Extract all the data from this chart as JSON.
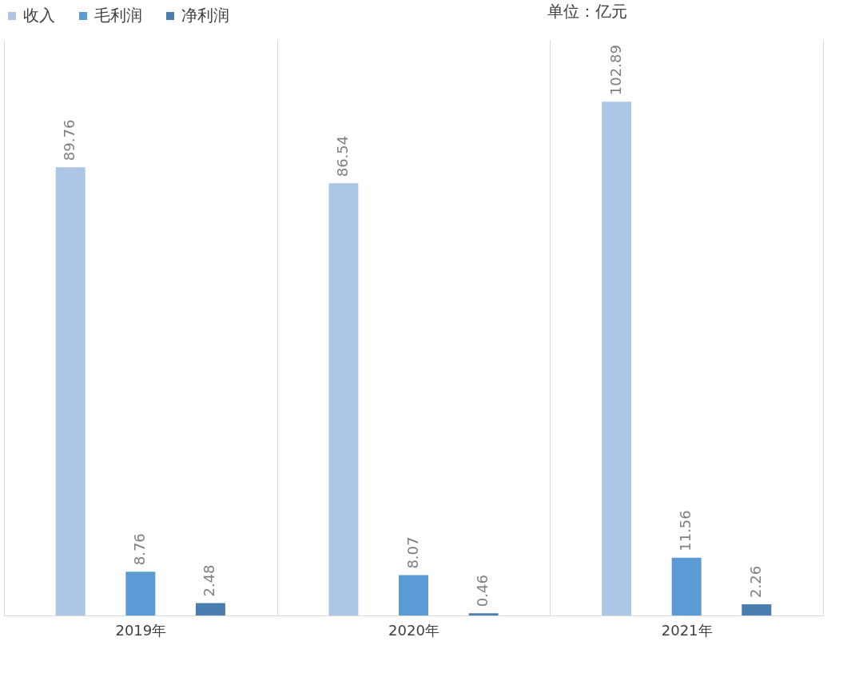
{
  "chart_data": {
    "type": "bar",
    "categories": [
      "2019年",
      "2020年",
      "2021年"
    ],
    "series": [
      {
        "name": "收入",
        "color": "#adc6e5",
        "values": [
          89.76,
          86.54,
          102.89
        ]
      },
      {
        "name": "毛利润",
        "color": "#5b9bd5",
        "values": [
          8.76,
          8.07,
          11.56
        ]
      },
      {
        "name": "净利润",
        "color": "#4a7eb0",
        "values": [
          2.48,
          0.46,
          2.26
        ]
      }
    ],
    "data_labels": true,
    "legend": "top",
    "grid": "x",
    "tick_labels": "x",
    "annotations": [
      "单位：亿元"
    ]
  }
}
